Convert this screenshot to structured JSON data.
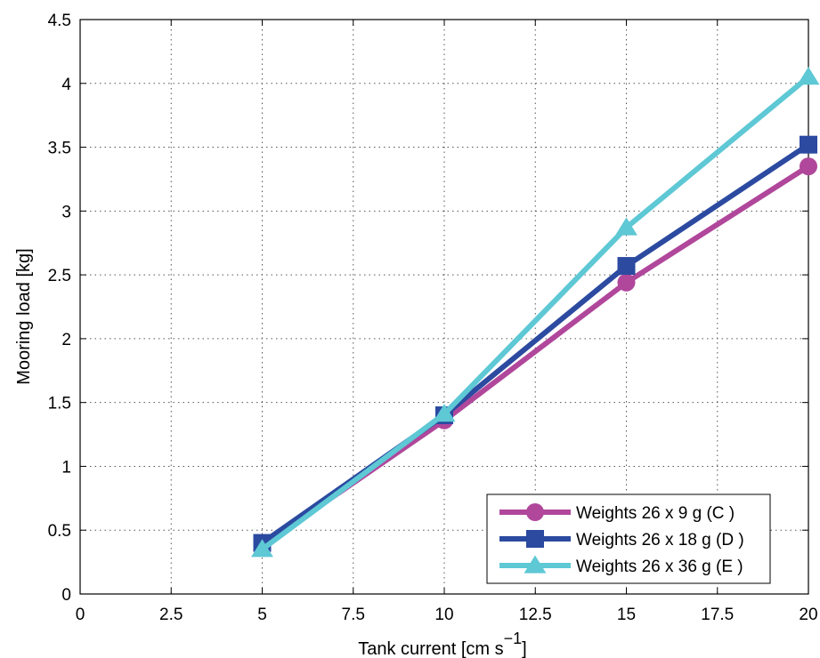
{
  "chart_data": {
    "type": "line",
    "title": "",
    "xlabel": "Tank current [cm s",
    "xlabel_superscript": "−1",
    "xlabel_close": "]",
    "ylabel": "Mooring load [kg]",
    "xlim": [
      0,
      20
    ],
    "ylim": [
      0,
      4.5
    ],
    "xticks": [
      0,
      2.5,
      5,
      7.5,
      10,
      12.5,
      15,
      17.5,
      20
    ],
    "xtick_labels": [
      "0",
      "2.5",
      "5",
      "7.5",
      "10",
      "12.5",
      "15",
      "17.5",
      "20"
    ],
    "yticks": [
      0,
      0.5,
      1,
      1.5,
      2,
      2.5,
      3,
      3.5,
      4,
      4.5
    ],
    "ytick_labels": [
      "0",
      "0.5",
      "1",
      "1.5",
      "2",
      "2.5",
      "3",
      "3.5",
      "4",
      "4.5"
    ],
    "grid": true,
    "legend_position": "bottom-right",
    "series": [
      {
        "name": "Weights 26 x 9 g (C )",
        "color": "#b0479b",
        "marker": "circle",
        "x": [
          5,
          10,
          15,
          20
        ],
        "y": [
          0.38,
          1.36,
          2.44,
          3.35
        ]
      },
      {
        "name": "Weights 26 x 18 g (D )",
        "color": "#2b4aa0",
        "marker": "square",
        "x": [
          5,
          10,
          15,
          20
        ],
        "y": [
          0.4,
          1.4,
          2.57,
          3.52
        ]
      },
      {
        "name": "Weights 26 x 36 g (E )",
        "color": "#5ec8d5",
        "marker": "triangle",
        "x": [
          5,
          10,
          15,
          20
        ],
        "y": [
          0.35,
          1.41,
          2.87,
          4.05
        ]
      }
    ]
  }
}
